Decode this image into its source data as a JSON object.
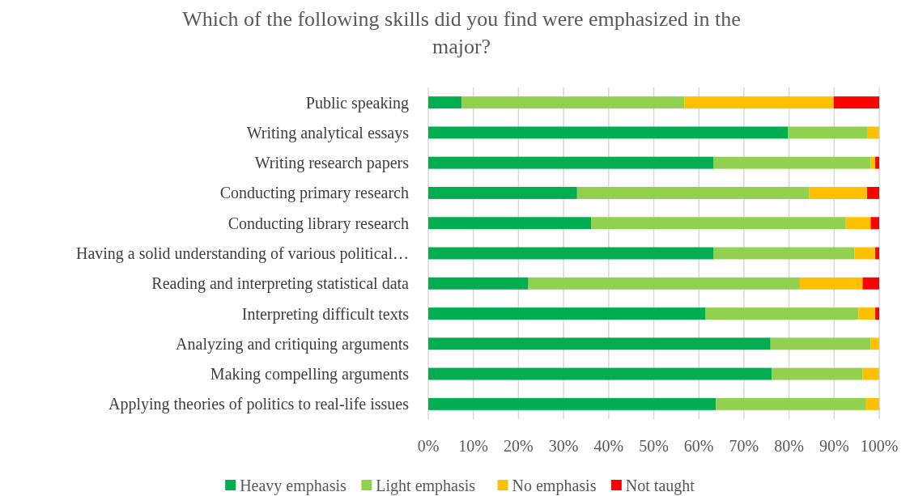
{
  "chart_data": {
    "type": "bar",
    "orientation": "horizontal",
    "stacked": true,
    "title": "Which of the following skills did you find were emphasized in the major?",
    "categories": [
      "Public speaking",
      "Writing analytical essays",
      "Writing research papers",
      "Conducting primary research",
      "Conducting library research",
      "Having a solid understanding of various political…",
      "Reading and interpreting statistical data",
      "Interpreting difficult texts",
      "Analyzing and critiquing arguments",
      "Making compelling arguments",
      "Applying theories of politics to real-life issues"
    ],
    "series": [
      {
        "name": "Heavy emphasis",
        "color": "#00ad50",
        "values": [
          7.4,
          79.8,
          63.3,
          33.0,
          36.1,
          63.3,
          22.2,
          61.5,
          75.9,
          76.2,
          63.8
        ]
      },
      {
        "name": "Light emphasis",
        "color": "#92d050",
        "values": [
          49.4,
          17.5,
          34.8,
          51.4,
          56.5,
          31.2,
          60.2,
          33.9,
          22.2,
          20.1,
          33.3
        ]
      },
      {
        "name": "No emphasis",
        "color": "#ffc000",
        "values": [
          33.1,
          2.7,
          1.0,
          12.9,
          5.5,
          4.6,
          13.9,
          3.7,
          1.9,
          3.7,
          2.9
        ]
      },
      {
        "name": "Not taught",
        "color": "#ff0000",
        "values": [
          10.1,
          0,
          0.9,
          2.7,
          1.9,
          0.9,
          3.7,
          0.9,
          0,
          0,
          0
        ]
      }
    ],
    "xlim": [
      0,
      100
    ],
    "xticks": [
      {
        "value": 0,
        "label": "0%"
      },
      {
        "value": 10,
        "label": "10%"
      },
      {
        "value": 20,
        "label": "20%"
      },
      {
        "value": 30,
        "label": "30%"
      },
      {
        "value": 40,
        "label": "40%"
      },
      {
        "value": 50,
        "label": "50%"
      },
      {
        "value": 60,
        "label": "60%"
      },
      {
        "value": 70,
        "label": "70%"
      },
      {
        "value": 80,
        "label": "80%"
      },
      {
        "value": 90,
        "label": "90%"
      },
      {
        "value": 100,
        "label": "100%"
      }
    ],
    "grid": "x",
    "legend": "bottom"
  }
}
